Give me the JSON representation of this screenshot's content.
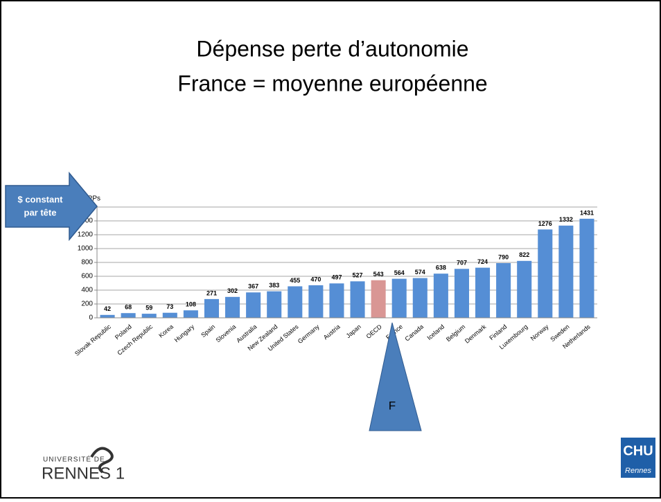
{
  "chart_data": {
    "type": "bar",
    "title": [
      "Dépense perte d’autonomie",
      "France = moyenne européenne"
    ],
    "ylabel": "PPPs",
    "categories": [
      "Slovak Republic",
      "Poland",
      "Czech Republic",
      "Korea",
      "Hungary",
      "Spain",
      "Slovenia",
      "Australia",
      "New Zealand",
      "United States",
      "Germany",
      "Austria",
      "Japan",
      "OECD",
      "France",
      "Canada",
      "Iceland",
      "Belgium",
      "Denmark",
      "Finland",
      "Luxembourg",
      "Norway",
      "Sweden",
      "Netherlands"
    ],
    "values": [
      42,
      68,
      59,
      73,
      108,
      271,
      302,
      367,
      383,
      455,
      470,
      497,
      527,
      543,
      564,
      574,
      638,
      707,
      724,
      790,
      822,
      1276,
      1332,
      1431
    ],
    "colors": [
      "#558ed5",
      "#558ed5",
      "#558ed5",
      "#558ed5",
      "#558ed5",
      "#558ed5",
      "#558ed5",
      "#558ed5",
      "#558ed5",
      "#558ed5",
      "#558ed5",
      "#558ed5",
      "#558ed5",
      "#d99694",
      "#558ed5",
      "#558ed5",
      "#558ed5",
      "#558ed5",
      "#558ed5",
      "#558ed5",
      "#558ed5",
      "#558ed5",
      "#558ed5",
      "#558ed5"
    ],
    "ylim": [
      0,
      1600
    ],
    "yticks": [
      0,
      200,
      400,
      600,
      800,
      1000,
      1200,
      1400,
      1600
    ],
    "grid": true,
    "annotations": [
      "$ constant",
      "par tête",
      "F"
    ]
  },
  "logos": [
    "UNIVERSITÉ DE",
    "RENNES 1",
    "CHU",
    "Rennes"
  ]
}
